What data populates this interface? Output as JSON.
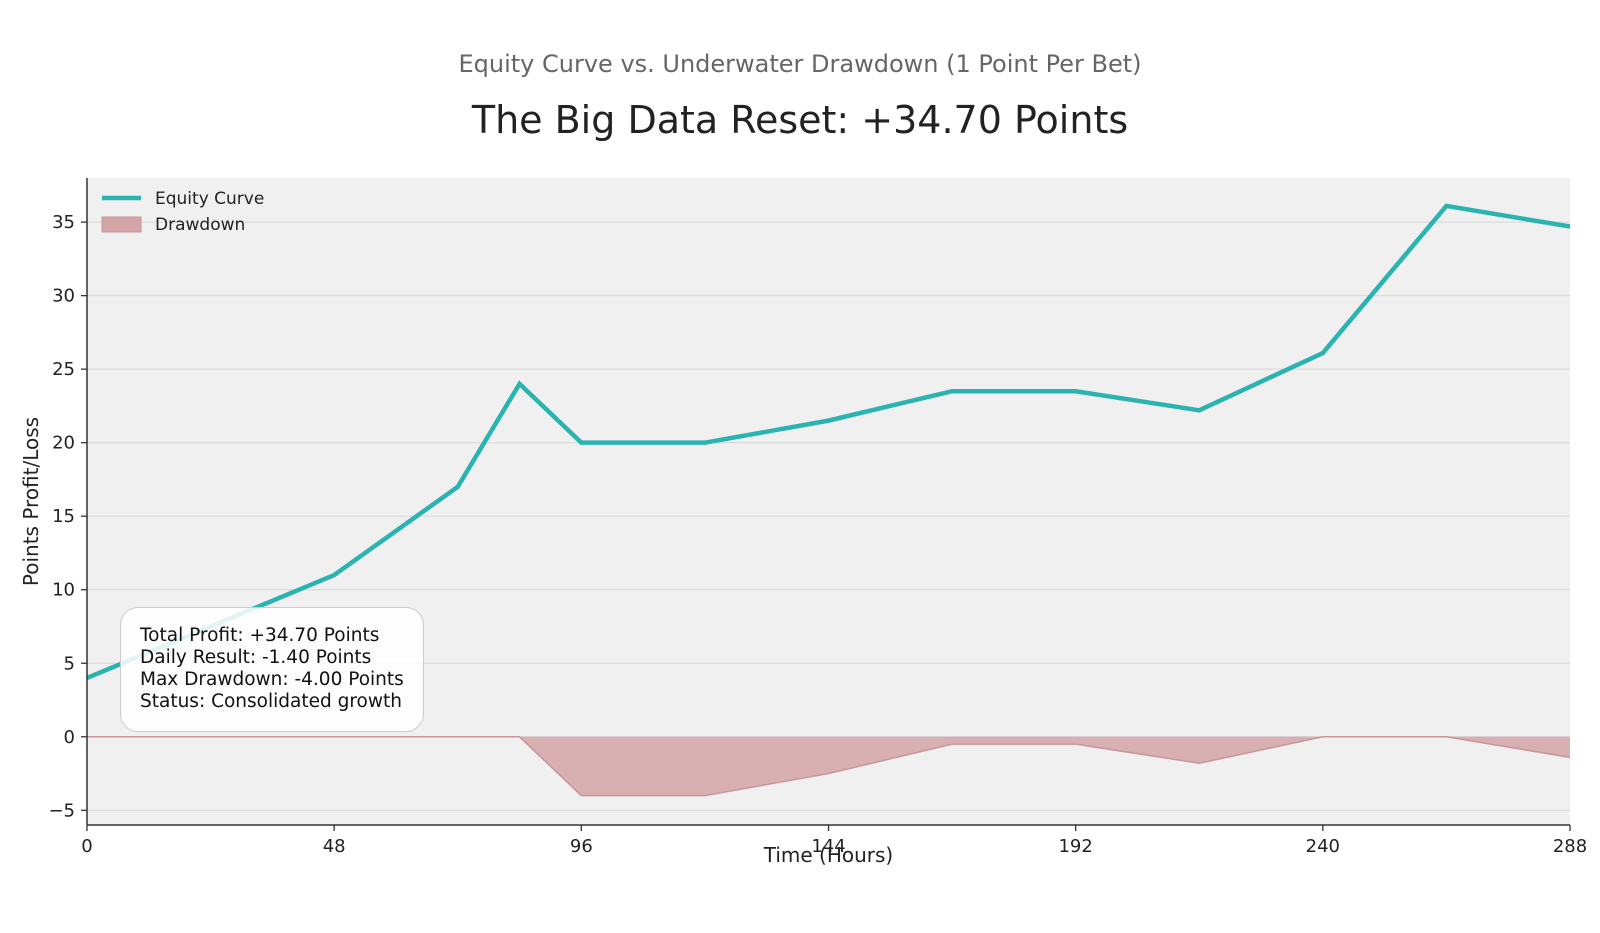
{
  "colors": {
    "equity": "#2bb3b1",
    "drawdown_fill": "#d4a5a7",
    "drawdown_line": "#c99598",
    "plot_bg": "#f0f0f0",
    "grid": "#dadada"
  },
  "chart_data": {
    "type": "line",
    "subtitle": "Equity Curve vs. Underwater Drawdown (1 Point Per Bet)",
    "title": "The Big Data Reset: +34.70 Points",
    "xlabel": "Time (Hours)",
    "ylabel": "Points Profit/Loss",
    "xlim": [
      0,
      288
    ],
    "ylim": [
      -6,
      38
    ],
    "xticks": [
      0,
      48,
      96,
      144,
      192,
      240,
      288
    ],
    "yticks": [
      -5,
      0,
      5,
      10,
      15,
      20,
      25,
      30,
      35
    ],
    "ytick_labels": [
      "−5",
      "0",
      "5",
      "10",
      "15",
      "20",
      "25",
      "30",
      "35"
    ],
    "grid": "horizontal",
    "legend_position": "top-left",
    "series": [
      {
        "name": "Equity Curve",
        "kind": "line",
        "x": [
          0,
          48,
          72,
          84,
          96,
          120,
          144,
          168,
          192,
          216,
          240,
          264,
          288
        ],
        "values": [
          4.0,
          11.0,
          17.0,
          24.0,
          20.0,
          20.0,
          21.5,
          23.5,
          23.5,
          22.2,
          26.1,
          36.1,
          34.7
        ]
      },
      {
        "name": "Drawdown",
        "kind": "area",
        "x": [
          0,
          48,
          72,
          84,
          96,
          120,
          144,
          168,
          192,
          216,
          240,
          264,
          288
        ],
        "values": [
          0,
          0,
          0,
          0,
          -4.0,
          -4.0,
          -2.5,
          -0.5,
          -0.5,
          -1.8,
          0,
          0,
          -1.4
        ]
      }
    ]
  },
  "stats": {
    "total_profit": "Total Profit: +34.70 Points",
    "daily_result": "Daily Result: -1.40 Points",
    "max_drawdown": "Max Drawdown: -4.00 Points",
    "status": "Status: Consolidated growth"
  }
}
